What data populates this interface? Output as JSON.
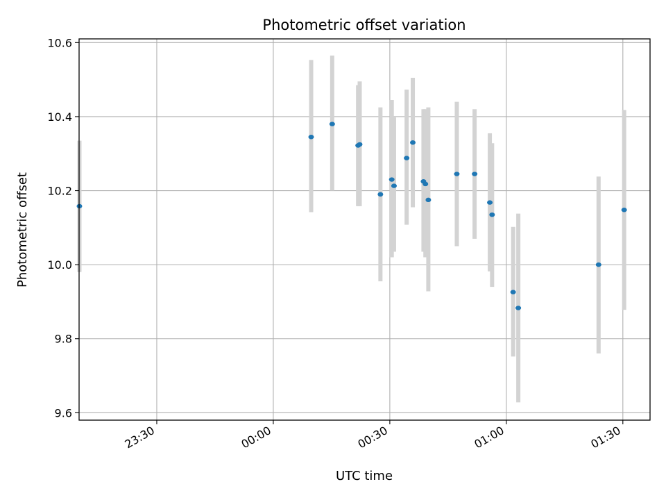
{
  "chart_data": {
    "type": "scatter",
    "title": "Photometric offset variation",
    "xlabel": "UTC time",
    "ylabel": "Photometric offset",
    "x_axis_kind": "time",
    "xlim": [
      "23:10",
      "01:37"
    ],
    "ylim": [
      9.58,
      10.61
    ],
    "grid": true,
    "x_ticks": [
      "23:30",
      "00:00",
      "00:30",
      "01:00",
      "01:30"
    ],
    "y_ticks": [
      "9.6",
      "9.8",
      "10.0",
      "10.2",
      "10.4",
      "10.6"
    ],
    "colors": {
      "point": "#1f77b4",
      "error_bar": "#d3d3d3",
      "grid": "#b0b0b0"
    },
    "points": [
      {
        "x": "23:10:05",
        "y": 10.158,
        "yerr_low": 9.98,
        "yerr_high": 10.335
      },
      {
        "x": "00:09:45",
        "y": 10.345,
        "yerr_low": 10.142,
        "yerr_high": 10.553
      },
      {
        "x": "00:15:10",
        "y": 10.38,
        "yerr_low": 10.2,
        "yerr_high": 10.565
      },
      {
        "x": "00:21:50",
        "y": 10.322,
        "yerr_low": 10.158,
        "yerr_high": 10.485
      },
      {
        "x": "00:22:15",
        "y": 10.325,
        "yerr_low": 10.158,
        "yerr_high": 10.495
      },
      {
        "x": "00:27:35",
        "y": 10.19,
        "yerr_low": 9.955,
        "yerr_high": 10.425
      },
      {
        "x": "00:30:30",
        "y": 10.23,
        "yerr_low": 10.02,
        "yerr_high": 10.445
      },
      {
        "x": "00:31:05",
        "y": 10.213,
        "yerr_low": 10.035,
        "yerr_high": 10.398
      },
      {
        "x": "00:34:20",
        "y": 10.288,
        "yerr_low": 10.108,
        "yerr_high": 10.473
      },
      {
        "x": "00:35:55",
        "y": 10.33,
        "yerr_low": 10.155,
        "yerr_high": 10.505
      },
      {
        "x": "00:38:40",
        "y": 10.225,
        "yerr_low": 10.035,
        "yerr_high": 10.42
      },
      {
        "x": "00:39:10",
        "y": 10.218,
        "yerr_low": 10.02,
        "yerr_high": 10.42
      },
      {
        "x": "00:39:55",
        "y": 10.175,
        "yerr_low": 9.928,
        "yerr_high": 10.425
      },
      {
        "x": "00:47:15",
        "y": 10.245,
        "yerr_low": 10.05,
        "yerr_high": 10.44
      },
      {
        "x": "00:51:50",
        "y": 10.245,
        "yerr_low": 10.07,
        "yerr_high": 10.42
      },
      {
        "x": "00:55:45",
        "y": 10.168,
        "yerr_low": 9.982,
        "yerr_high": 10.355
      },
      {
        "x": "00:56:20",
        "y": 10.135,
        "yerr_low": 9.94,
        "yerr_high": 10.328
      },
      {
        "x": "01:01:45",
        "y": 9.926,
        "yerr_low": 9.752,
        "yerr_high": 10.102
      },
      {
        "x": "01:03:05",
        "y": 9.883,
        "yerr_low": 9.628,
        "yerr_high": 10.138
      },
      {
        "x": "01:23:45",
        "y": 10.0,
        "yerr_low": 9.76,
        "yerr_high": 10.238
      },
      {
        "x": "01:30:20",
        "y": 10.148,
        "yerr_low": 9.878,
        "yerr_high": 10.418
      }
    ]
  }
}
